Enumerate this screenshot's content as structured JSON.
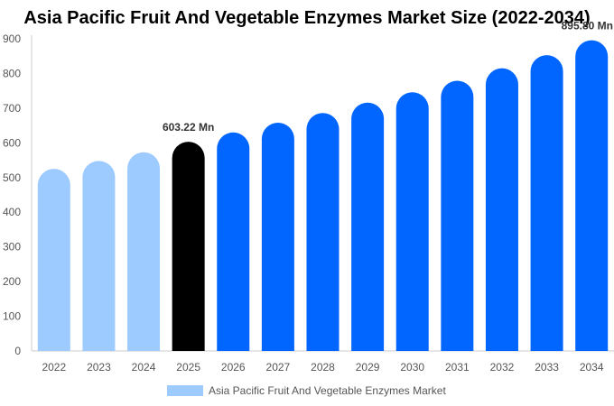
{
  "chart_data": {
    "type": "bar",
    "title": "Asia Pacific Fruit And Vegetable Enzymes Market Size (2022-2034)",
    "categories": [
      "2022",
      "2023",
      "2024",
      "2025",
      "2026",
      "2027",
      "2028",
      "2029",
      "2030",
      "2031",
      "2032",
      "2033",
      "2034"
    ],
    "series": [
      {
        "name": "Asia Pacific Fruit And Vegetable Enzymes Market",
        "values": [
          525,
          548,
          573,
          603.22,
          630,
          658,
          686,
          716,
          746,
          779,
          815,
          853,
          895.8
        ]
      }
    ],
    "data_labels": [
      {
        "category": "2025",
        "text": "603.22 Mn"
      },
      {
        "category": "2034",
        "text": "895.80 Mn"
      }
    ],
    "ylim": [
      0,
      900
    ],
    "yticks": [
      0,
      100,
      200,
      300,
      400,
      500,
      600,
      700,
      800,
      900
    ],
    "xlabel": "",
    "ylabel": "",
    "grid": false,
    "legend_position": "bottom",
    "colors": {
      "historical": "#9ecbff",
      "current": "#000000",
      "forecast": "#0066ff",
      "axis": "#cccccc",
      "tick_text": "#555555",
      "label_text": "#333333"
    },
    "color_groups": [
      "historical",
      "historical",
      "historical",
      "current",
      "forecast",
      "forecast",
      "forecast",
      "forecast",
      "forecast",
      "forecast",
      "forecast",
      "forecast",
      "forecast"
    ]
  }
}
